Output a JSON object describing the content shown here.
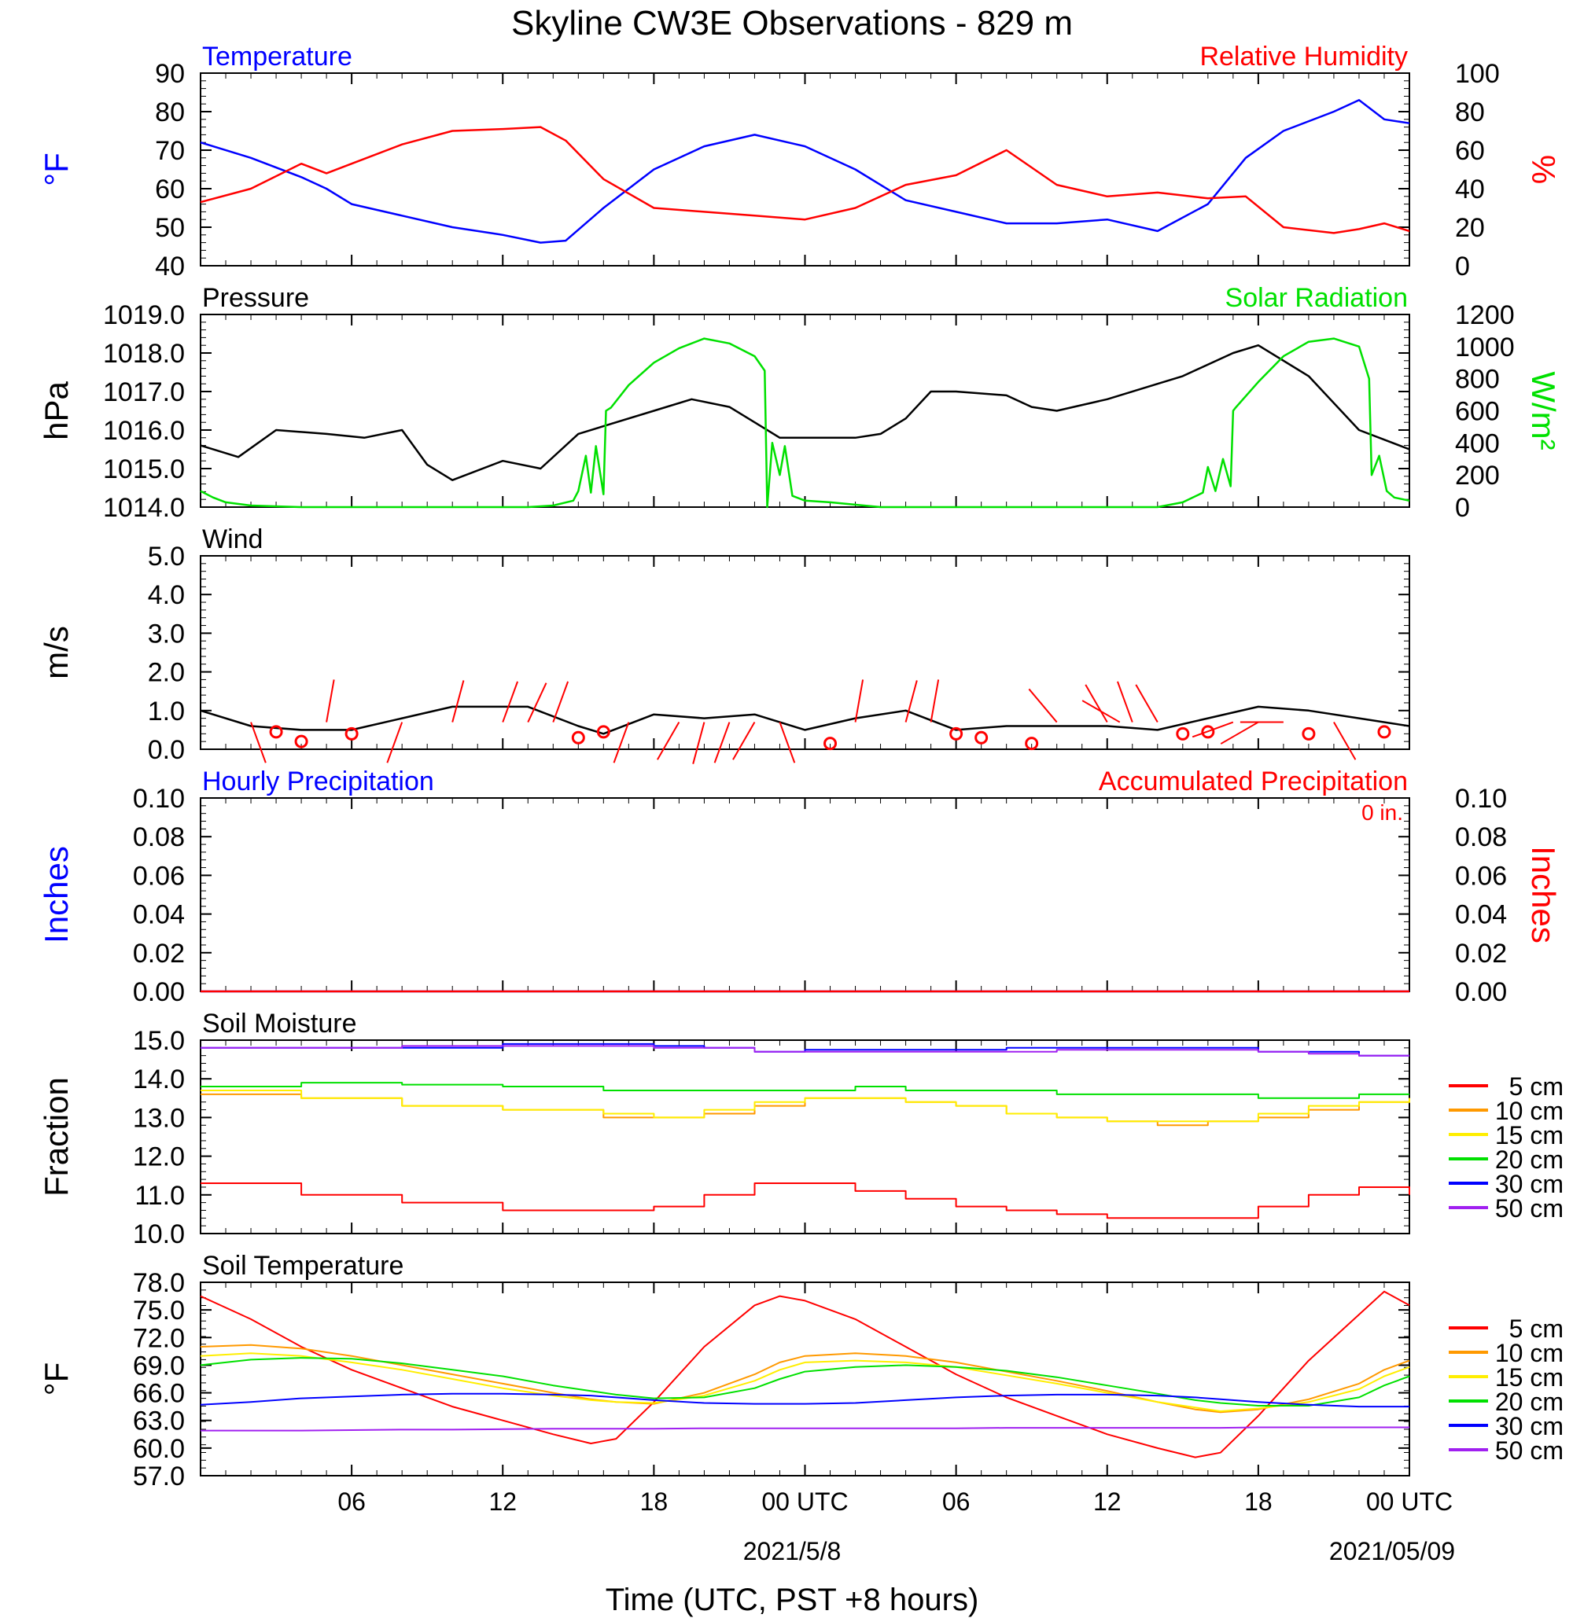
{
  "title": "Skyline CW3E Observations - 829 m",
  "xlabel": "Time (UTC, PST +8 hours)",
  "x_ticks": [
    "06",
    "12",
    "18",
    "00 UTC",
    "06",
    "12",
    "18",
    "00 UTC"
  ],
  "x_dates": [
    "2021/5/8",
    "2021/05/09"
  ],
  "colors": {
    "red": "#ff0000",
    "blue": "#0000ff",
    "green": "#00e000",
    "black": "#000000",
    "orange": "#ff9900",
    "yellow": "#ffee00",
    "purple": "#a020f0"
  },
  "chart_data": [
    {
      "type": "line",
      "name": "temperature_rh",
      "left_title": "Temperature",
      "right_title": "Relative Humidity",
      "ylabel_left": "°F",
      "ylabel_right": "%",
      "ylim_left": [
        40,
        90
      ],
      "ylim_right": [
        0,
        100
      ],
      "yticks_left": [
        "90",
        "80",
        "70",
        "60",
        "50",
        "40"
      ],
      "yticks_right": [
        "100",
        "80",
        "60",
        "40",
        "20",
        "0"
      ],
      "x_hours": [
        0,
        2,
        4,
        5,
        6,
        8,
        10,
        12,
        13.5,
        14.5,
        16,
        18,
        20,
        22,
        24,
        26,
        28,
        30,
        32,
        34,
        36,
        38,
        40,
        41.5,
        43,
        45,
        46,
        47,
        48
      ],
      "series": [
        {
          "name": "Temperature",
          "color": "#0000ff",
          "axis": "left",
          "values": [
            72,
            68,
            63,
            60,
            56,
            53,
            50,
            48,
            46,
            46.5,
            55,
            65,
            71,
            74,
            71,
            65,
            57,
            54,
            51,
            51,
            52,
            49,
            56,
            68,
            75,
            80,
            83,
            78,
            77
          ]
        },
        {
          "name": "Relative Humidity",
          "color": "#ff0000",
          "axis": "right",
          "values": [
            33,
            40,
            53,
            48,
            53,
            63,
            70,
            71,
            72,
            65,
            45,
            30,
            28,
            26,
            24,
            30,
            42,
            47,
            60,
            42,
            36,
            38,
            35,
            36,
            20,
            17,
            19,
            22,
            18
          ]
        }
      ]
    },
    {
      "type": "line",
      "name": "pressure_solar",
      "left_title": "Pressure",
      "right_title": "Solar Radiation",
      "ylabel_left": "hPa",
      "ylabel_right": "W/m²",
      "ylim_left": [
        1014.0,
        1019.0
      ],
      "ylim_right": [
        0,
        1200
      ],
      "yticks_left": [
        "1019.0",
        "1018.0",
        "1017.0",
        "1016.0",
        "1015.0",
        "1014.0"
      ],
      "yticks_right": [
        "1200",
        "1000",
        "800",
        "600",
        "400",
        "200",
        "0"
      ],
      "series": [
        {
          "name": "Pressure",
          "color": "#000000",
          "axis": "left",
          "x_hours": [
            0,
            1.5,
            3,
            5,
            6.5,
            8,
            9,
            10,
            12,
            13.5,
            15,
            16,
            18,
            19.5,
            21,
            22,
            23,
            24,
            26,
            27,
            28,
            29,
            30,
            32,
            33,
            34,
            36,
            38,
            39,
            41,
            42,
            44,
            46,
            48
          ],
          "values": [
            1015.6,
            1015.3,
            1016.0,
            1015.9,
            1015.8,
            1016.0,
            1015.1,
            1014.7,
            1015.2,
            1015.0,
            1015.9,
            1016.1,
            1016.5,
            1016.8,
            1016.6,
            1016.2,
            1015.8,
            1015.8,
            1015.8,
            1015.9,
            1016.3,
            1017.0,
            1017.0,
            1016.9,
            1016.6,
            1016.5,
            1016.8,
            1017.2,
            1017.4,
            1018.0,
            1018.2,
            1017.4,
            1016.0,
            1015.5
          ]
        },
        {
          "name": "Solar Radiation",
          "color": "#00e000",
          "axis": "right",
          "x_hours": [
            0,
            0.5,
            1,
            2,
            4,
            13,
            14,
            14.8,
            15,
            15.3,
            15.5,
            15.7,
            16,
            16.1,
            16.3,
            17,
            18,
            19,
            20,
            21,
            22,
            22.4,
            22.5,
            22.7,
            23,
            23.2,
            23.5,
            24,
            25,
            27,
            38,
            39,
            39.8,
            40,
            40.3,
            40.6,
            40.9,
            41,
            41.1,
            42,
            43,
            44,
            45,
            46,
            46.4,
            46.5,
            46.8,
            47.1,
            47.4,
            48
          ],
          "values": [
            100,
            60,
            30,
            10,
            0,
            0,
            10,
            40,
            100,
            320,
            90,
            380,
            80,
            600,
            620,
            760,
            900,
            990,
            1050,
            1020,
            940,
            850,
            0,
            400,
            200,
            380,
            70,
            40,
            30,
            0,
            0,
            30,
            90,
            250,
            100,
            300,
            130,
            600,
            620,
            780,
            940,
            1030,
            1050,
            1000,
            800,
            200,
            320,
            100,
            60,
            40
          ]
        }
      ]
    },
    {
      "type": "line",
      "name": "wind",
      "left_title": "Wind",
      "ylabel_left": "m/s",
      "ylim_left": [
        0,
        5.0
      ],
      "yticks_left": [
        "5.0",
        "4.0",
        "3.0",
        "2.0",
        "1.0",
        "0.0"
      ],
      "series": [
        {
          "name": "Wind speed",
          "color": "#000000",
          "x_hours": [
            0,
            2,
            4,
            6,
            8,
            10,
            12,
            13,
            15,
            16,
            18,
            20,
            22,
            24,
            26,
            28,
            30,
            32,
            34,
            36,
            38,
            40,
            42,
            44,
            46,
            48
          ],
          "values": [
            1.0,
            0.6,
            0.5,
            0.5,
            0.8,
            1.1,
            1.1,
            1.1,
            0.6,
            0.4,
            0.9,
            0.8,
            0.9,
            0.5,
            0.8,
            1.0,
            0.5,
            0.6,
            0.6,
            0.6,
            0.5,
            0.8,
            1.1,
            1.0,
            0.8,
            0.6
          ]
        }
      ],
      "wind_calm_hours": [
        3,
        4,
        6,
        15,
        16,
        25,
        30,
        31,
        33,
        39,
        40,
        44,
        47
      ],
      "wind_calm_values": [
        0.45,
        0.2,
        0.4,
        0.3,
        0.45,
        0.15,
        0.4,
        0.3,
        0.15,
        0.4,
        0.45,
        0.4,
        0.45
      ],
      "wind_barb_hours": [
        2,
        5,
        8,
        10,
        12,
        13,
        14,
        17,
        19,
        20,
        21,
        22,
        23,
        26,
        28,
        29,
        34,
        36,
        36.5,
        37,
        38,
        41,
        42,
        43,
        45
      ],
      "wind_barb_dir_deg": [
        160,
        10,
        200,
        15,
        20,
        25,
        20,
        200,
        210,
        195,
        200,
        210,
        160,
        10,
        15,
        10,
        320,
        330,
        300,
        340,
        330,
        250,
        240,
        270,
        150
      ]
    },
    {
      "type": "line",
      "name": "precipitation",
      "left_title": "Hourly Precipitation",
      "right_title": "Accumulated Precipitation",
      "annotation": "0 in.",
      "ylabel_left": "Inches",
      "ylabel_right": "Inches",
      "ylim_left": [
        0,
        0.1
      ],
      "ylim_right": [
        0,
        0.1
      ],
      "yticks_left": [
        "0.10",
        "0.08",
        "0.06",
        "0.04",
        "0.02",
        "0.00"
      ],
      "yticks_right": [
        "0.10",
        "0.08",
        "0.06",
        "0.04",
        "0.02",
        "0.00"
      ],
      "series": [
        {
          "name": "Hourly Precipitation",
          "color": "#0000ff",
          "x_hours": [
            0,
            48
          ],
          "values": [
            0,
            0
          ]
        },
        {
          "name": "Accumulated Precipitation",
          "color": "#ff0000",
          "x_hours": [
            0,
            48
          ],
          "values": [
            0,
            0
          ]
        }
      ]
    },
    {
      "type": "line",
      "name": "soil_moisture",
      "left_title": "Soil Moisture",
      "ylabel_left": "Fraction",
      "ylim_left": [
        10.0,
        15.0
      ],
      "yticks_left": [
        "15.0",
        "14.0",
        "13.0",
        "12.0",
        "11.0",
        "10.0"
      ],
      "legend": [
        "5 cm",
        "10 cm",
        "15 cm",
        "20 cm",
        "30 cm",
        "50 cm"
      ],
      "x_hours": [
        0,
        4,
        8,
        12,
        16,
        18,
        20,
        22,
        24,
        26,
        28,
        30,
        32,
        34,
        36,
        38,
        40,
        42,
        44,
        46,
        48
      ],
      "series": [
        {
          "name": "5 cm",
          "color": "#ff0000",
          "values": [
            11.3,
            11.0,
            10.8,
            10.6,
            10.6,
            10.7,
            11.0,
            11.3,
            11.3,
            11.1,
            10.9,
            10.7,
            10.6,
            10.5,
            10.4,
            10.4,
            10.4,
            10.7,
            11.0,
            11.2,
            11.0
          ]
        },
        {
          "name": "10 cm",
          "color": "#ff9900",
          "values": [
            13.6,
            13.5,
            13.3,
            13.2,
            13.0,
            13.0,
            13.1,
            13.3,
            13.5,
            13.5,
            13.4,
            13.3,
            13.1,
            13.0,
            12.9,
            12.8,
            12.9,
            13.0,
            13.2,
            13.4,
            13.5
          ]
        },
        {
          "name": "15 cm",
          "color": "#ffee00",
          "values": [
            13.7,
            13.5,
            13.3,
            13.2,
            13.1,
            13.0,
            13.2,
            13.4,
            13.5,
            13.5,
            13.4,
            13.3,
            13.1,
            13.0,
            12.9,
            12.9,
            12.9,
            13.1,
            13.3,
            13.4,
            13.5
          ]
        },
        {
          "name": "20 cm",
          "color": "#00e000",
          "values": [
            13.8,
            13.9,
            13.85,
            13.8,
            13.7,
            13.7,
            13.7,
            13.7,
            13.7,
            13.8,
            13.7,
            13.7,
            13.7,
            13.6,
            13.6,
            13.6,
            13.6,
            13.5,
            13.5,
            13.6,
            13.6
          ]
        },
        {
          "name": "30 cm",
          "color": "#0000ff",
          "values": [
            14.8,
            14.8,
            14.8,
            14.9,
            14.9,
            14.85,
            14.8,
            14.7,
            14.75,
            14.75,
            14.75,
            14.75,
            14.8,
            14.8,
            14.8,
            14.8,
            14.8,
            14.7,
            14.7,
            14.6,
            14.6
          ]
        },
        {
          "name": "50 cm",
          "color": "#a020f0",
          "values": [
            14.8,
            14.8,
            14.85,
            14.85,
            14.85,
            14.8,
            14.8,
            14.7,
            14.7,
            14.7,
            14.7,
            14.7,
            14.7,
            14.75,
            14.75,
            14.75,
            14.75,
            14.7,
            14.65,
            14.6,
            14.6
          ]
        }
      ]
    },
    {
      "type": "line",
      "name": "soil_temperature",
      "left_title": "Soil Temperature",
      "ylabel_left": "°F",
      "ylim_left": [
        57.0,
        78.0
      ],
      "yticks_left": [
        "78.0",
        "75.0",
        "72.0",
        "69.0",
        "66.0",
        "63.0",
        "60.0",
        "57.0"
      ],
      "legend": [
        "5 cm",
        "10 cm",
        "15 cm",
        "20 cm",
        "30 cm",
        "50 cm"
      ],
      "x_hours": [
        0,
        2,
        4,
        6,
        8,
        10,
        12,
        14,
        15.5,
        16.5,
        18,
        20,
        22,
        23,
        24,
        26,
        28,
        30,
        32,
        34,
        36,
        38,
        39.5,
        40.5,
        42,
        44,
        46,
        47,
        48
      ],
      "series": [
        {
          "name": "5 cm",
          "color": "#ff0000",
          "values": [
            76.5,
            74.0,
            71.0,
            68.5,
            66.5,
            64.5,
            63.0,
            61.5,
            60.5,
            61.0,
            65.0,
            71.0,
            75.5,
            76.5,
            76.0,
            74.0,
            71.0,
            68.0,
            65.5,
            63.5,
            61.5,
            60.0,
            59.0,
            59.5,
            63.5,
            69.5,
            74.5,
            77.0,
            75.5
          ]
        },
        {
          "name": "10 cm",
          "color": "#ff9900",
          "values": [
            71.0,
            71.2,
            70.8,
            70.0,
            69.0,
            68.0,
            67.0,
            66.0,
            65.3,
            65.0,
            64.8,
            66.0,
            68.0,
            69.3,
            70.0,
            70.3,
            70.0,
            69.3,
            68.3,
            67.3,
            66.2,
            65.0,
            64.2,
            63.9,
            64.2,
            65.3,
            67.0,
            68.5,
            69.5
          ]
        },
        {
          "name": "15 cm",
          "color": "#ffee00",
          "values": [
            70.0,
            70.3,
            70.0,
            69.3,
            68.5,
            67.5,
            66.5,
            65.7,
            65.2,
            65.0,
            64.9,
            65.7,
            67.3,
            68.5,
            69.3,
            69.5,
            69.3,
            68.8,
            67.9,
            67.0,
            66.0,
            65.0,
            64.4,
            64.0,
            64.3,
            65.0,
            66.4,
            67.8,
            68.8
          ]
        },
        {
          "name": "20 cm",
          "color": "#00e000",
          "values": [
            69.0,
            69.6,
            69.8,
            69.7,
            69.2,
            68.5,
            67.8,
            66.8,
            66.2,
            65.8,
            65.4,
            65.5,
            66.5,
            67.5,
            68.3,
            68.8,
            69.0,
            68.8,
            68.4,
            67.7,
            66.8,
            65.9,
            65.2,
            64.9,
            64.6,
            64.6,
            65.5,
            66.8,
            67.8
          ]
        },
        {
          "name": "30 cm",
          "color": "#0000ff",
          "values": [
            64.7,
            65.0,
            65.4,
            65.6,
            65.8,
            65.9,
            65.9,
            65.8,
            65.7,
            65.5,
            65.2,
            64.9,
            64.8,
            64.8,
            64.8,
            64.9,
            65.2,
            65.5,
            65.7,
            65.8,
            65.8,
            65.7,
            65.5,
            65.3,
            65.0,
            64.7,
            64.5,
            64.5,
            64.5
          ]
        },
        {
          "name": "50 cm",
          "color": "#a020f0",
          "values": [
            61.9,
            61.9,
            61.9,
            61.95,
            62.0,
            62.0,
            62.05,
            62.1,
            62.1,
            62.1,
            62.1,
            62.15,
            62.15,
            62.15,
            62.15,
            62.15,
            62.15,
            62.15,
            62.2,
            62.2,
            62.2,
            62.2,
            62.2,
            62.2,
            62.25,
            62.25,
            62.25,
            62.25,
            62.25
          ]
        }
      ]
    }
  ]
}
